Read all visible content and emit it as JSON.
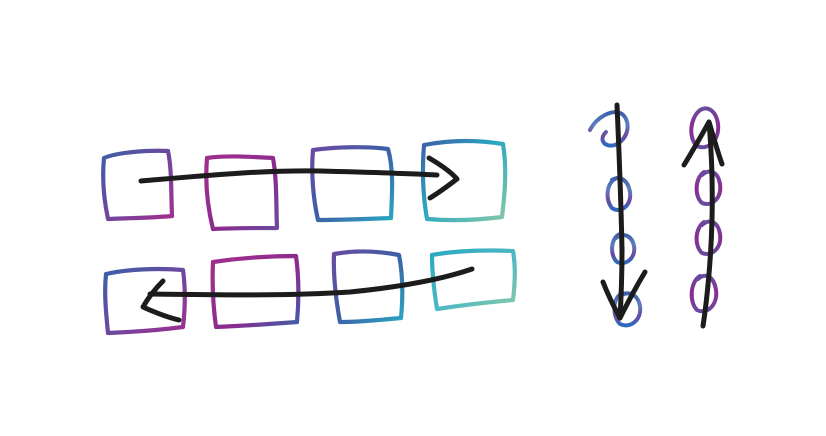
{
  "canvas": {
    "background": "#ffffff"
  },
  "colors": {
    "ink": "#1c1c1c",
    "purple": "#8a2c8f",
    "magenta": "#a12e8e",
    "violet": "#6a4aa0",
    "blue": "#3d5fa8",
    "teal": "#2aa7c0",
    "mint": "#86c9a8"
  },
  "illustration": {
    "description_icon": "sketch-illustration",
    "row_top": {
      "box_count": 4,
      "arrow_direction": "right"
    },
    "row_bottom": {
      "box_count": 4,
      "arrow_direction": "left"
    },
    "column_down": {
      "loop_count": 4,
      "arrow_direction": "down"
    },
    "column_up": {
      "loop_count": 4,
      "arrow_direction": "up"
    }
  }
}
